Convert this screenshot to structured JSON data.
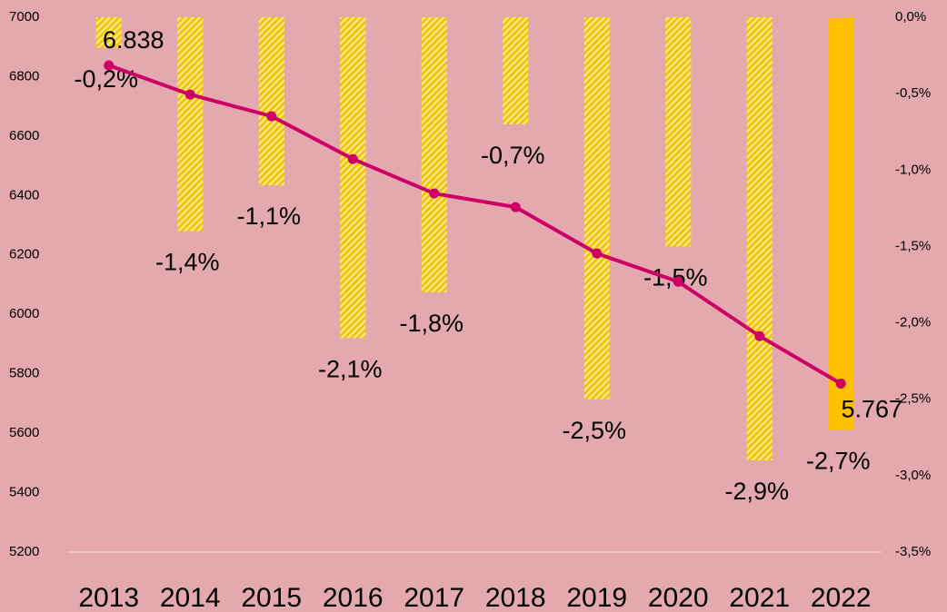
{
  "chart_data": {
    "type": "bar_line",
    "categories": [
      "2013",
      "2014",
      "2015",
      "2016",
      "2017",
      "2018",
      "2019",
      "2020",
      "2021",
      "2022"
    ],
    "series": [
      {
        "type": "bar",
        "axis": "y2",
        "color": "#FFC000",
        "fills": [
          "hatch",
          "hatch",
          "hatch",
          "hatch",
          "hatch",
          "hatch",
          "hatch",
          "hatch",
          "hatch",
          "solid"
        ],
        "values": [
          -0.2,
          -1.4,
          -1.1,
          -2.1,
          -1.8,
          -0.7,
          -2.5,
          -1.5,
          -2.9,
          -2.7
        ],
        "value_labels": [
          "-0,2%",
          "-1,4%",
          "-1,1%",
          "-2,1%",
          "-1,8%",
          "-0,7%",
          "-2,5%",
          "-1,5%",
          "-2,9%",
          "-2,7%"
        ]
      },
      {
        "type": "line",
        "axis": "y",
        "color": "#CC0066",
        "values": [
          6838,
          6740,
          6667,
          6523,
          6407,
          6361,
          6205,
          6110,
          5927,
          5767
        ],
        "value_labels": [
          "6.838",
          null,
          null,
          null,
          null,
          null,
          null,
          null,
          null,
          "5.767"
        ]
      }
    ],
    "ylim": [
      5200,
      7000
    ],
    "yticks": [
      5200,
      5400,
      5600,
      5800,
      6000,
      6200,
      6400,
      6600,
      6800,
      7000
    ],
    "y2lim": [
      -3.5,
      0
    ],
    "y2ticks": [
      {
        "value": -3.5,
        "label": "-3,5%"
      },
      {
        "value": -3.0,
        "label": "-3,0%"
      },
      {
        "value": -2.5,
        "label": "-2,5%"
      },
      {
        "value": -2.0,
        "label": "-2,0%"
      },
      {
        "value": -1.5,
        "label": "-1,5%"
      },
      {
        "value": -1.0,
        "label": "-1,0%"
      },
      {
        "value": -0.5,
        "label": "-0,5%"
      },
      {
        "value": 0.0,
        "label": "0,0%"
      }
    ]
  }
}
